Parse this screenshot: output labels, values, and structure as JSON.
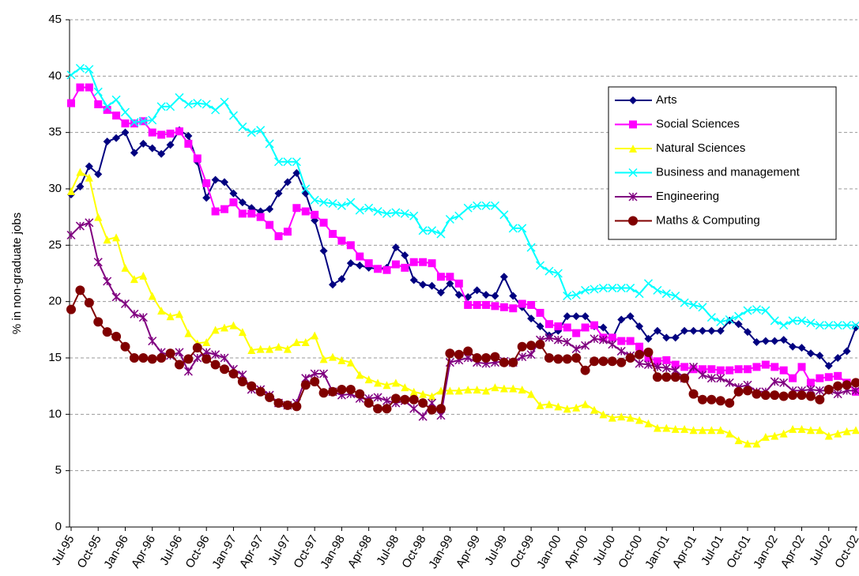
{
  "chart_data": {
    "type": "line",
    "y_label": "% in non-graduate jobs",
    "categories": [
      "Jul-95",
      null,
      null,
      "Oct-95",
      null,
      null,
      "Jan-96",
      null,
      null,
      "Apr-96",
      null,
      null,
      "Jul-96",
      null,
      null,
      "Oct-96",
      null,
      null,
      "Jan-97",
      null,
      null,
      "Apr-97",
      null,
      null,
      "Jul-97",
      null,
      null,
      "Oct-97",
      null,
      null,
      "Jan-98",
      null,
      null,
      "Apr-98",
      null,
      null,
      "Jul-98",
      null,
      null,
      "Oct-98",
      null,
      null,
      "Jan-99",
      null,
      null,
      "Apr-99",
      null,
      null,
      "Jul-99",
      null,
      null,
      "Oct-99",
      null,
      null,
      "Jan-00",
      null,
      null,
      "Apr-00",
      null,
      null,
      "Jul-00",
      null,
      null,
      "Oct-00",
      null,
      null,
      "Jan-01",
      null,
      null,
      "Apr-01",
      null,
      null,
      "Jul-01",
      null,
      null,
      "Oct-01",
      null,
      null,
      "Jan-02",
      null,
      null,
      "Apr-02",
      null,
      null,
      "Jul-02",
      null,
      null,
      "Oct-02"
    ],
    "series": [
      {
        "name": "Arts",
        "color": "#000080",
        "marker": "diamond",
        "values": [
          29.5,
          30.2,
          32,
          31.3,
          34.2,
          34.5,
          35,
          33.2,
          34,
          33.6,
          33.1,
          33.9,
          35.2,
          34.7,
          32.4,
          29.2,
          30.8,
          30.6,
          29.6,
          28.8,
          28.3,
          28,
          28.2,
          29.6,
          30.6,
          31.4,
          29.6,
          27.2,
          24.5,
          21.5,
          22,
          23.4,
          23.2,
          23,
          22.9,
          23,
          24.8,
          24.1,
          21.9,
          21.5,
          21.4,
          20.8,
          21.6,
          20.6,
          20.4,
          21,
          20.6,
          20.5,
          22.2,
          20.5,
          19.5,
          18.5,
          17.8,
          17,
          17.4,
          18.7,
          18.7,
          18.7,
          17.8,
          17.7,
          16.7,
          18.4,
          18.7,
          17.8,
          16.7,
          17.4,
          16.8,
          16.8,
          17.4,
          17.4,
          17.4,
          17.4,
          17.4,
          18.3,
          18,
          17.3,
          16.4,
          16.5,
          16.5,
          16.6,
          16,
          15.9,
          15.4,
          15.2,
          14.3,
          15,
          15.6,
          17.7
        ]
      },
      {
        "name": "Social Sciences",
        "color": "#ff00ff",
        "marker": "square",
        "values": [
          37.6,
          39,
          39,
          37.5,
          37,
          36.5,
          35.8,
          35.8,
          36,
          35,
          34.8,
          34.9,
          35.1,
          34,
          32.7,
          30.5,
          28,
          28.2,
          28.8,
          27.8,
          27.8,
          27.5,
          26.8,
          25.8,
          26.2,
          28.3,
          28,
          27.7,
          27,
          26,
          25.4,
          25,
          24,
          23.4,
          22.9,
          22.8,
          23.3,
          23,
          23.5,
          23.5,
          23.4,
          22.2,
          22.2,
          21.6,
          19.7,
          19.7,
          19.7,
          19.6,
          19.5,
          19.4,
          19.8,
          19.7,
          19,
          18,
          17.8,
          17.7,
          17.2,
          17.7,
          17.9,
          16.8,
          16.8,
          16.5,
          16.5,
          16,
          15,
          14.7,
          14.8,
          14.4,
          14.2,
          14,
          14,
          14,
          13.9,
          13.9,
          14,
          14,
          14.2,
          14.4,
          14.2,
          13.9,
          13.2,
          14.2,
          12.8,
          13.2,
          13.3,
          13.4,
          12.8,
          12
        ]
      },
      {
        "name": "Natural Sciences",
        "color": "#ffff00",
        "marker": "triangle",
        "values": [
          29.8,
          31.5,
          31,
          27.5,
          25.5,
          25.7,
          23,
          22,
          22.3,
          20.5,
          19.2,
          18.7,
          18.9,
          17.2,
          16.3,
          16.4,
          17.5,
          17.7,
          17.9,
          17.3,
          15.7,
          15.8,
          15.8,
          16,
          15.8,
          16.4,
          16.4,
          17,
          14.9,
          15.1,
          14.8,
          14.6,
          13.5,
          13.1,
          12.8,
          12.6,
          12.8,
          12.4,
          12,
          11.8,
          11.6,
          12.1,
          12.1,
          12.1,
          12.2,
          12.2,
          12.1,
          12.4,
          12.3,
          12.3,
          12.2,
          11.8,
          10.8,
          10.9,
          10.7,
          10.5,
          10.6,
          10.9,
          10.4,
          10,
          9.7,
          9.8,
          9.7,
          9.5,
          9.2,
          8.8,
          8.8,
          8.7,
          8.7,
          8.6,
          8.6,
          8.6,
          8.6,
          8.3,
          7.7,
          7.4,
          7.4,
          8,
          8.1,
          8.3,
          8.7,
          8.7,
          8.6,
          8.6,
          8.1,
          8.3,
          8.5,
          8.6
        ]
      },
      {
        "name": "Business and management",
        "color": "#00ffff",
        "marker": "x",
        "values": [
          40.1,
          40.7,
          40.6,
          38.6,
          37.3,
          37.9,
          36.8,
          35.9,
          36,
          36.1,
          37.3,
          37.3,
          38.1,
          37.5,
          37.6,
          37.5,
          37,
          37.7,
          36.5,
          35.5,
          35,
          35.2,
          34,
          32.4,
          32.4,
          32.4,
          30,
          29,
          28.8,
          28.7,
          28.5,
          28.8,
          28.1,
          28.3,
          28,
          27.8,
          27.9,
          27.8,
          27.6,
          26.3,
          26.3,
          26,
          27.3,
          27.6,
          28.3,
          28.5,
          28.5,
          28.5,
          27.7,
          26.5,
          26.5,
          24.8,
          23.2,
          22.7,
          22.5,
          20.5,
          20.6,
          21,
          21.1,
          21.2,
          21.2,
          21.2,
          21.2,
          20.7,
          21.6,
          21,
          20.7,
          20.5,
          19.9,
          19.7,
          19.5,
          18.6,
          18.2,
          18.4,
          18.7,
          19.2,
          19.3,
          19.2,
          18.3,
          17.9,
          18.3,
          18.3,
          18.1,
          17.9,
          17.9,
          17.9,
          17.9,
          17.9
        ]
      },
      {
        "name": "Engineering",
        "color": "#800080",
        "marker": "star",
        "values": [
          25.9,
          26.7,
          27,
          23.5,
          21.8,
          20.4,
          19.8,
          18.9,
          18.6,
          16.5,
          15.5,
          15.2,
          15.5,
          13.8,
          15,
          15.5,
          15.3,
          15,
          14,
          13.5,
          12.2,
          12.2,
          11.7,
          11,
          10.8,
          11,
          13.2,
          13.6,
          13.6,
          12,
          11.7,
          11.8,
          11.4,
          11.4,
          11.5,
          11.2,
          11,
          11.2,
          10.5,
          9.8,
          11,
          9.9,
          14.6,
          14.8,
          15,
          14.6,
          14.5,
          14.6,
          14.7,
          14.6,
          15.1,
          15.3,
          16.6,
          16.8,
          16.6,
          16.4,
          15.8,
          16.1,
          16.7,
          16.6,
          16.2,
          15.6,
          15.2,
          14.5,
          14.4,
          14.2,
          14.1,
          13.9,
          13.2,
          14.2,
          13.5,
          13.2,
          13.2,
          12.8,
          12.4,
          12.6,
          12,
          12,
          12.9,
          12.8,
          12.1,
          12.1,
          12.2,
          12.1,
          12.1,
          11.8,
          12.1,
          12.1
        ]
      },
      {
        "name": "Maths & Computing",
        "color": "#800000",
        "marker": "circle",
        "values": [
          19.3,
          21,
          19.9,
          18.2,
          17.3,
          16.9,
          16,
          15,
          15,
          14.9,
          15,
          15.4,
          14.4,
          14.9,
          15.9,
          14.9,
          14.4,
          14,
          13.6,
          12.9,
          12.5,
          12,
          11.5,
          11,
          10.8,
          10.7,
          12.6,
          12.9,
          11.9,
          12,
          12.2,
          12.2,
          11.8,
          11,
          10.5,
          10.5,
          11.4,
          11.3,
          11.3,
          11,
          10.4,
          10.5,
          15.4,
          15.3,
          15.6,
          15,
          15,
          15.1,
          14.6,
          14.6,
          16,
          16.1,
          16.2,
          15,
          14.9,
          14.9,
          15,
          13.9,
          14.7,
          14.7,
          14.7,
          14.6,
          15,
          15.3,
          15.5,
          13.3,
          13.3,
          13.3,
          13.2,
          11.8,
          11.3,
          11.3,
          11.2,
          11,
          12,
          12.1,
          11.8,
          11.7,
          11.7,
          11.6,
          11.7,
          11.7,
          11.6,
          11.3,
          12.2,
          12.5,
          12.6,
          12.8
        ]
      }
    ],
    "ylim": [
      0,
      45
    ],
    "yticks": [
      0,
      5,
      10,
      15,
      20,
      25,
      30,
      35,
      40,
      45
    ],
    "grid": true,
    "legend": "upper right"
  }
}
